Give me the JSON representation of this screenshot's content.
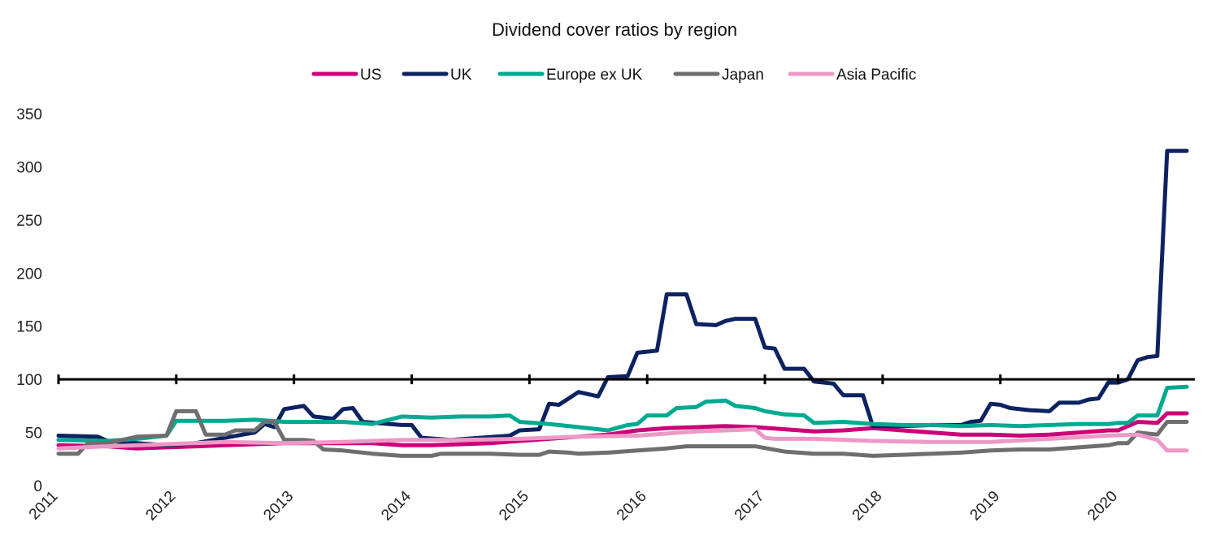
{
  "chart_data": {
    "type": "line",
    "title": "Dividend cover ratios by region",
    "xlabel": "",
    "ylabel": "",
    "x_start": "2011-01",
    "x_end": "2020-08",
    "ylim": [
      0,
      350
    ],
    "yticks": [
      0,
      50,
      100,
      150,
      200,
      250,
      300,
      350
    ],
    "xticks": [
      "2011",
      "2012",
      "2013",
      "2014",
      "2015",
      "2016",
      "2017",
      "2018",
      "2019",
      "2020"
    ],
    "reference_line": 100,
    "grid": false,
    "legend": "top-center",
    "series": [
      {
        "name": "US",
        "color": "#cc0077",
        "points": [
          [
            "2011-01",
            38
          ],
          [
            "2011-06",
            37
          ],
          [
            "2011-09",
            35
          ],
          [
            "2011-12",
            36
          ],
          [
            "2012-03",
            37
          ],
          [
            "2012-06",
            38
          ],
          [
            "2012-09",
            39
          ],
          [
            "2012-12",
            40
          ],
          [
            "2013-03",
            40
          ],
          [
            "2013-06",
            40
          ],
          [
            "2013-09",
            40
          ],
          [
            "2013-12",
            38
          ],
          [
            "2014-03",
            38
          ],
          [
            "2014-06",
            39
          ],
          [
            "2014-09",
            40
          ],
          [
            "2014-12",
            42
          ],
          [
            "2015-03",
            44
          ],
          [
            "2015-06",
            46
          ],
          [
            "2015-09",
            48
          ],
          [
            "2015-12",
            52
          ],
          [
            "2016-03",
            54
          ],
          [
            "2016-06",
            55
          ],
          [
            "2016-09",
            56
          ],
          [
            "2016-12",
            55
          ],
          [
            "2017-03",
            53
          ],
          [
            "2017-06",
            51
          ],
          [
            "2017-09",
            52
          ],
          [
            "2017-12",
            54
          ],
          [
            "2018-03",
            52
          ],
          [
            "2018-06",
            50
          ],
          [
            "2018-09",
            48
          ],
          [
            "2018-12",
            48
          ],
          [
            "2019-03",
            47
          ],
          [
            "2019-06",
            48
          ],
          [
            "2019-09",
            50
          ],
          [
            "2019-12",
            52
          ],
          [
            "2020-01",
            52
          ],
          [
            "2020-03",
            60
          ],
          [
            "2020-05",
            59
          ],
          [
            "2020-06",
            68
          ],
          [
            "2020-08",
            68
          ]
        ]
      },
      {
        "name": "UK",
        "color": "#0d2260",
        "points": [
          [
            "2011-01",
            47
          ],
          [
            "2011-05",
            46
          ],
          [
            "2011-06",
            42
          ],
          [
            "2011-09",
            40
          ],
          [
            "2011-12",
            38
          ],
          [
            "2012-03",
            40
          ],
          [
            "2012-06",
            45
          ],
          [
            "2012-09",
            50
          ],
          [
            "2012-10",
            58
          ],
          [
            "2012-11",
            55
          ],
          [
            "2012-12",
            72
          ],
          [
            "2013-02",
            75
          ],
          [
            "2013-03",
            65
          ],
          [
            "2013-05",
            63
          ],
          [
            "2013-06",
            72
          ],
          [
            "2013-07",
            73
          ],
          [
            "2013-08",
            60
          ],
          [
            "2013-12",
            57
          ],
          [
            "2014-01",
            57
          ],
          [
            "2014-02",
            45
          ],
          [
            "2014-05",
            43
          ],
          [
            "2014-08",
            45
          ],
          [
            "2014-11",
            47
          ],
          [
            "2014-12",
            52
          ],
          [
            "2015-02",
            53
          ],
          [
            "2015-03",
            77
          ],
          [
            "2015-04",
            76
          ],
          [
            "2015-06",
            88
          ],
          [
            "2015-08",
            84
          ],
          [
            "2015-09",
            102
          ],
          [
            "2015-11",
            103
          ],
          [
            "2015-12",
            125
          ],
          [
            "2016-02",
            127
          ],
          [
            "2016-03",
            180
          ],
          [
            "2016-05",
            180
          ],
          [
            "2016-06",
            152
          ],
          [
            "2016-08",
            151
          ],
          [
            "2016-09",
            155
          ],
          [
            "2016-10",
            157
          ],
          [
            "2016-12",
            157
          ],
          [
            "2017-01",
            130
          ],
          [
            "2017-02",
            129
          ],
          [
            "2017-03",
            110
          ],
          [
            "2017-05",
            110
          ],
          [
            "2017-06",
            98
          ],
          [
            "2017-08",
            96
          ],
          [
            "2017-09",
            85
          ],
          [
            "2017-11",
            85
          ],
          [
            "2017-12",
            56
          ],
          [
            "2018-03",
            56
          ],
          [
            "2018-06",
            57
          ],
          [
            "2018-09",
            57
          ],
          [
            "2018-10",
            60
          ],
          [
            "2018-11",
            61
          ],
          [
            "2018-12",
            77
          ],
          [
            "2019-01",
            76
          ],
          [
            "2019-02",
            73
          ],
          [
            "2019-04",
            71
          ],
          [
            "2019-06",
            70
          ],
          [
            "2019-07",
            78
          ],
          [
            "2019-09",
            78
          ],
          [
            "2019-10",
            81
          ],
          [
            "2019-11",
            82
          ],
          [
            "2019-12",
            97
          ],
          [
            "2020-01",
            97
          ],
          [
            "2020-02",
            100
          ],
          [
            "2020-03",
            118
          ],
          [
            "2020-04",
            121
          ],
          [
            "2020-05",
            122
          ],
          [
            "2020-06",
            315
          ],
          [
            "2020-08",
            315
          ]
        ]
      },
      {
        "name": "Europe ex UK",
        "color": "#00a98f",
        "points": [
          [
            "2011-01",
            43
          ],
          [
            "2011-06",
            42
          ],
          [
            "2011-09",
            44
          ],
          [
            "2011-12",
            47
          ],
          [
            "2012-01",
            61
          ],
          [
            "2012-06",
            61
          ],
          [
            "2012-09",
            62
          ],
          [
            "2012-12",
            60
          ],
          [
            "2013-03",
            60
          ],
          [
            "2013-06",
            60
          ],
          [
            "2013-09",
            58
          ],
          [
            "2013-12",
            65
          ],
          [
            "2014-03",
            64
          ],
          [
            "2014-06",
            65
          ],
          [
            "2014-09",
            65
          ],
          [
            "2014-11",
            66
          ],
          [
            "2014-12",
            60
          ],
          [
            "2015-03",
            58
          ],
          [
            "2015-06",
            55
          ],
          [
            "2015-08",
            53
          ],
          [
            "2015-09",
            52
          ],
          [
            "2015-11",
            57
          ],
          [
            "2015-12",
            58
          ],
          [
            "2016-01",
            66
          ],
          [
            "2016-03",
            66
          ],
          [
            "2016-04",
            73
          ],
          [
            "2016-06",
            74
          ],
          [
            "2016-07",
            79
          ],
          [
            "2016-09",
            80
          ],
          [
            "2016-10",
            75
          ],
          [
            "2016-12",
            73
          ],
          [
            "2017-01",
            70
          ],
          [
            "2017-03",
            67
          ],
          [
            "2017-05",
            66
          ],
          [
            "2017-06",
            59
          ],
          [
            "2017-09",
            60
          ],
          [
            "2017-12",
            58
          ],
          [
            "2018-03",
            57
          ],
          [
            "2018-06",
            57
          ],
          [
            "2018-09",
            56
          ],
          [
            "2018-12",
            57
          ],
          [
            "2019-03",
            56
          ],
          [
            "2019-06",
            57
          ],
          [
            "2019-09",
            58
          ],
          [
            "2019-12",
            58
          ],
          [
            "2020-01",
            59
          ],
          [
            "2020-02",
            59
          ],
          [
            "2020-03",
            66
          ],
          [
            "2020-05",
            66
          ],
          [
            "2020-06",
            92
          ],
          [
            "2020-08",
            93
          ]
        ]
      },
      {
        "name": "Japan",
        "color": "#6e6e6e",
        "points": [
          [
            "2011-01",
            30
          ],
          [
            "2011-03",
            30
          ],
          [
            "2011-04",
            40
          ],
          [
            "2011-06",
            40
          ],
          [
            "2011-09",
            46
          ],
          [
            "2011-12",
            47
          ],
          [
            "2012-01",
            70
          ],
          [
            "2012-03",
            70
          ],
          [
            "2012-04",
            48
          ],
          [
            "2012-06",
            48
          ],
          [
            "2012-07",
            52
          ],
          [
            "2012-09",
            52
          ],
          [
            "2012-10",
            60
          ],
          [
            "2012-11",
            60
          ],
          [
            "2012-12",
            43
          ],
          [
            "2013-02",
            43
          ],
          [
            "2013-03",
            42
          ],
          [
            "2013-04",
            34
          ],
          [
            "2013-06",
            33
          ],
          [
            "2013-09",
            30
          ],
          [
            "2013-12",
            28
          ],
          [
            "2014-03",
            28
          ],
          [
            "2014-04",
            30
          ],
          [
            "2014-06",
            30
          ],
          [
            "2014-09",
            30
          ],
          [
            "2014-12",
            29
          ],
          [
            "2015-02",
            29
          ],
          [
            "2015-03",
            32
          ],
          [
            "2015-05",
            31
          ],
          [
            "2015-06",
            30
          ],
          [
            "2015-09",
            31
          ],
          [
            "2015-12",
            33
          ],
          [
            "2016-03",
            35
          ],
          [
            "2016-05",
            37
          ],
          [
            "2016-09",
            37
          ],
          [
            "2016-12",
            37
          ],
          [
            "2017-03",
            32
          ],
          [
            "2017-06",
            30
          ],
          [
            "2017-09",
            30
          ],
          [
            "2017-12",
            28
          ],
          [
            "2018-03",
            29
          ],
          [
            "2018-06",
            30
          ],
          [
            "2018-09",
            31
          ],
          [
            "2018-12",
            33
          ],
          [
            "2019-03",
            34
          ],
          [
            "2019-06",
            34
          ],
          [
            "2019-09",
            36
          ],
          [
            "2019-12",
            38
          ],
          [
            "2020-01",
            40
          ],
          [
            "2020-02",
            40
          ],
          [
            "2020-03",
            50
          ],
          [
            "2020-05",
            48
          ],
          [
            "2020-06",
            60
          ],
          [
            "2020-08",
            60
          ]
        ]
      },
      {
        "name": "Asia Pacific",
        "color": "#ec99c6",
        "points": [
          [
            "2011-01",
            35
          ],
          [
            "2011-06",
            37
          ],
          [
            "2011-12",
            39
          ],
          [
            "2012-06",
            41
          ],
          [
            "2012-12",
            40
          ],
          [
            "2013-06",
            41
          ],
          [
            "2013-12",
            43
          ],
          [
            "2014-06",
            43
          ],
          [
            "2014-12",
            44
          ],
          [
            "2015-06",
            46
          ],
          [
            "2015-12",
            47
          ],
          [
            "2016-06",
            51
          ],
          [
            "2016-09",
            52
          ],
          [
            "2016-12",
            53
          ],
          [
            "2017-01",
            45
          ],
          [
            "2017-02",
            44
          ],
          [
            "2017-06",
            44
          ],
          [
            "2017-12",
            42
          ],
          [
            "2018-06",
            41
          ],
          [
            "2018-12",
            41
          ],
          [
            "2019-06",
            44
          ],
          [
            "2019-12",
            47
          ],
          [
            "2020-03",
            48
          ],
          [
            "2020-05",
            43
          ],
          [
            "2020-06",
            33
          ],
          [
            "2020-08",
            33
          ]
        ]
      }
    ]
  }
}
